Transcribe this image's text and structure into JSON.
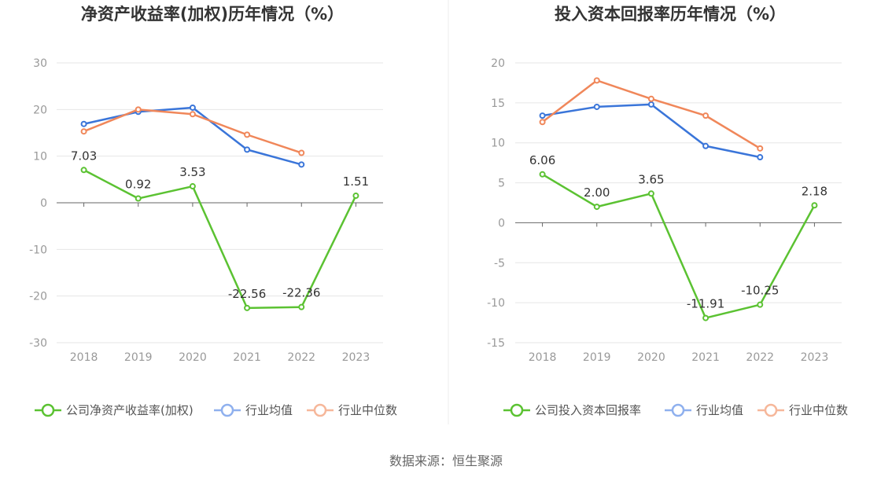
{
  "chart_data": [
    {
      "type": "line",
      "title": "净资产收益率(加权)历年情况（%）",
      "categories": [
        "2018",
        "2019",
        "2020",
        "2021",
        "2022",
        "2023"
      ],
      "ylim": [
        -30,
        30
      ],
      "yticks": [
        30,
        20,
        10,
        0,
        -10,
        -20,
        -30
      ],
      "grid": true,
      "legend_position": "bottom",
      "series": [
        {
          "name": "公司净资产收益率(加权)",
          "color": "#5bc232",
          "values": [
            7.03,
            0.92,
            3.53,
            -22.56,
            -22.36,
            1.51
          ],
          "labels": [
            "7.03",
            "0.92",
            "3.53",
            "-22.56",
            "-22.36",
            "1.51"
          ]
        },
        {
          "name": "行业均值",
          "color": "#3a75d9",
          "values": [
            16.9,
            19.5,
            20.4,
            11.4,
            8.2,
            null
          ]
        },
        {
          "name": "行业中位数",
          "color": "#f0875a",
          "values": [
            15.3,
            20.0,
            19.0,
            14.6,
            10.7,
            null
          ]
        }
      ]
    },
    {
      "type": "line",
      "title": "投入资本回报率历年情况（%）",
      "categories": [
        "2018",
        "2019",
        "2020",
        "2021",
        "2022",
        "2023"
      ],
      "ylim": [
        -15,
        20
      ],
      "yticks": [
        20,
        15,
        10,
        5,
        0,
        -5,
        -10,
        -15
      ],
      "grid": true,
      "legend_position": "bottom",
      "series": [
        {
          "name": "公司投入资本回报率",
          "color": "#5bc232",
          "values": [
            6.06,
            2.0,
            3.65,
            -11.91,
            -10.25,
            2.18
          ],
          "labels": [
            "6.06",
            "2.00",
            "3.65",
            "-11.91",
            "-10.25",
            "2.18"
          ]
        },
        {
          "name": "行业均值",
          "color": "#3a75d9",
          "values": [
            13.4,
            14.5,
            14.8,
            9.6,
            8.2,
            null
          ]
        },
        {
          "name": "行业中位数",
          "color": "#f0875a",
          "values": [
            12.6,
            17.8,
            15.5,
            13.4,
            9.3,
            null
          ]
        }
      ]
    }
  ],
  "source": "数据来源：恒生聚源",
  "colors": {
    "grid": "#e6e6e6",
    "axis": "#666666",
    "divider": "#eeeeee"
  }
}
